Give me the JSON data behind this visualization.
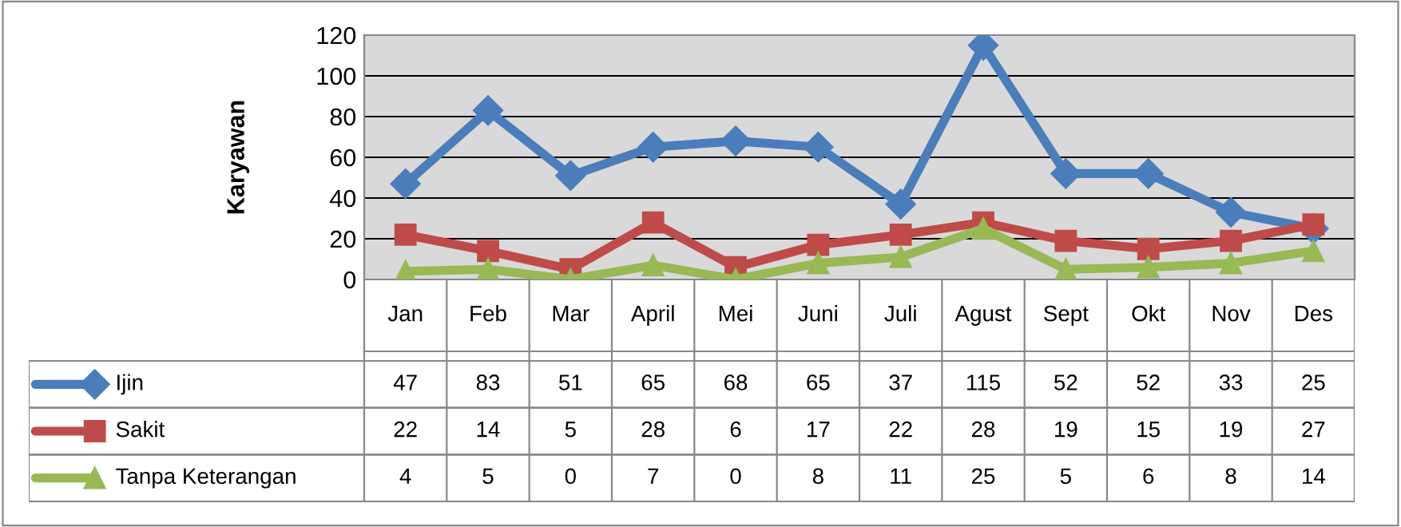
{
  "chart_data": {
    "type": "line",
    "ylabel": "Karyawan",
    "categories": [
      "Jan",
      "Feb",
      "Mar",
      "April",
      "Mei",
      "Juni",
      "Juli",
      "Agust",
      "Sept",
      "Okt",
      "Nov",
      "Des"
    ],
    "series": [
      {
        "name": "Ijin",
        "color": "#4a7ebb",
        "marker": "diamond",
        "values": [
          47,
          83,
          51,
          65,
          68,
          65,
          37,
          115,
          52,
          52,
          33,
          25
        ]
      },
      {
        "name": "Sakit",
        "color": "#be4b48",
        "marker": "square",
        "values": [
          22,
          14,
          5,
          28,
          6,
          17,
          22,
          28,
          19,
          15,
          19,
          27
        ]
      },
      {
        "name": "Tanpa Keterangan",
        "color": "#98b954",
        "marker": "triangle",
        "values": [
          4,
          5,
          0,
          7,
          0,
          8,
          11,
          25,
          5,
          6,
          8,
          14
        ]
      }
    ],
    "ylim": [
      0,
      120
    ],
    "yticks": [
      0,
      20,
      40,
      60,
      80,
      100,
      120
    ],
    "grid": "y",
    "legend": "bottom",
    "data_labels": true
  }
}
